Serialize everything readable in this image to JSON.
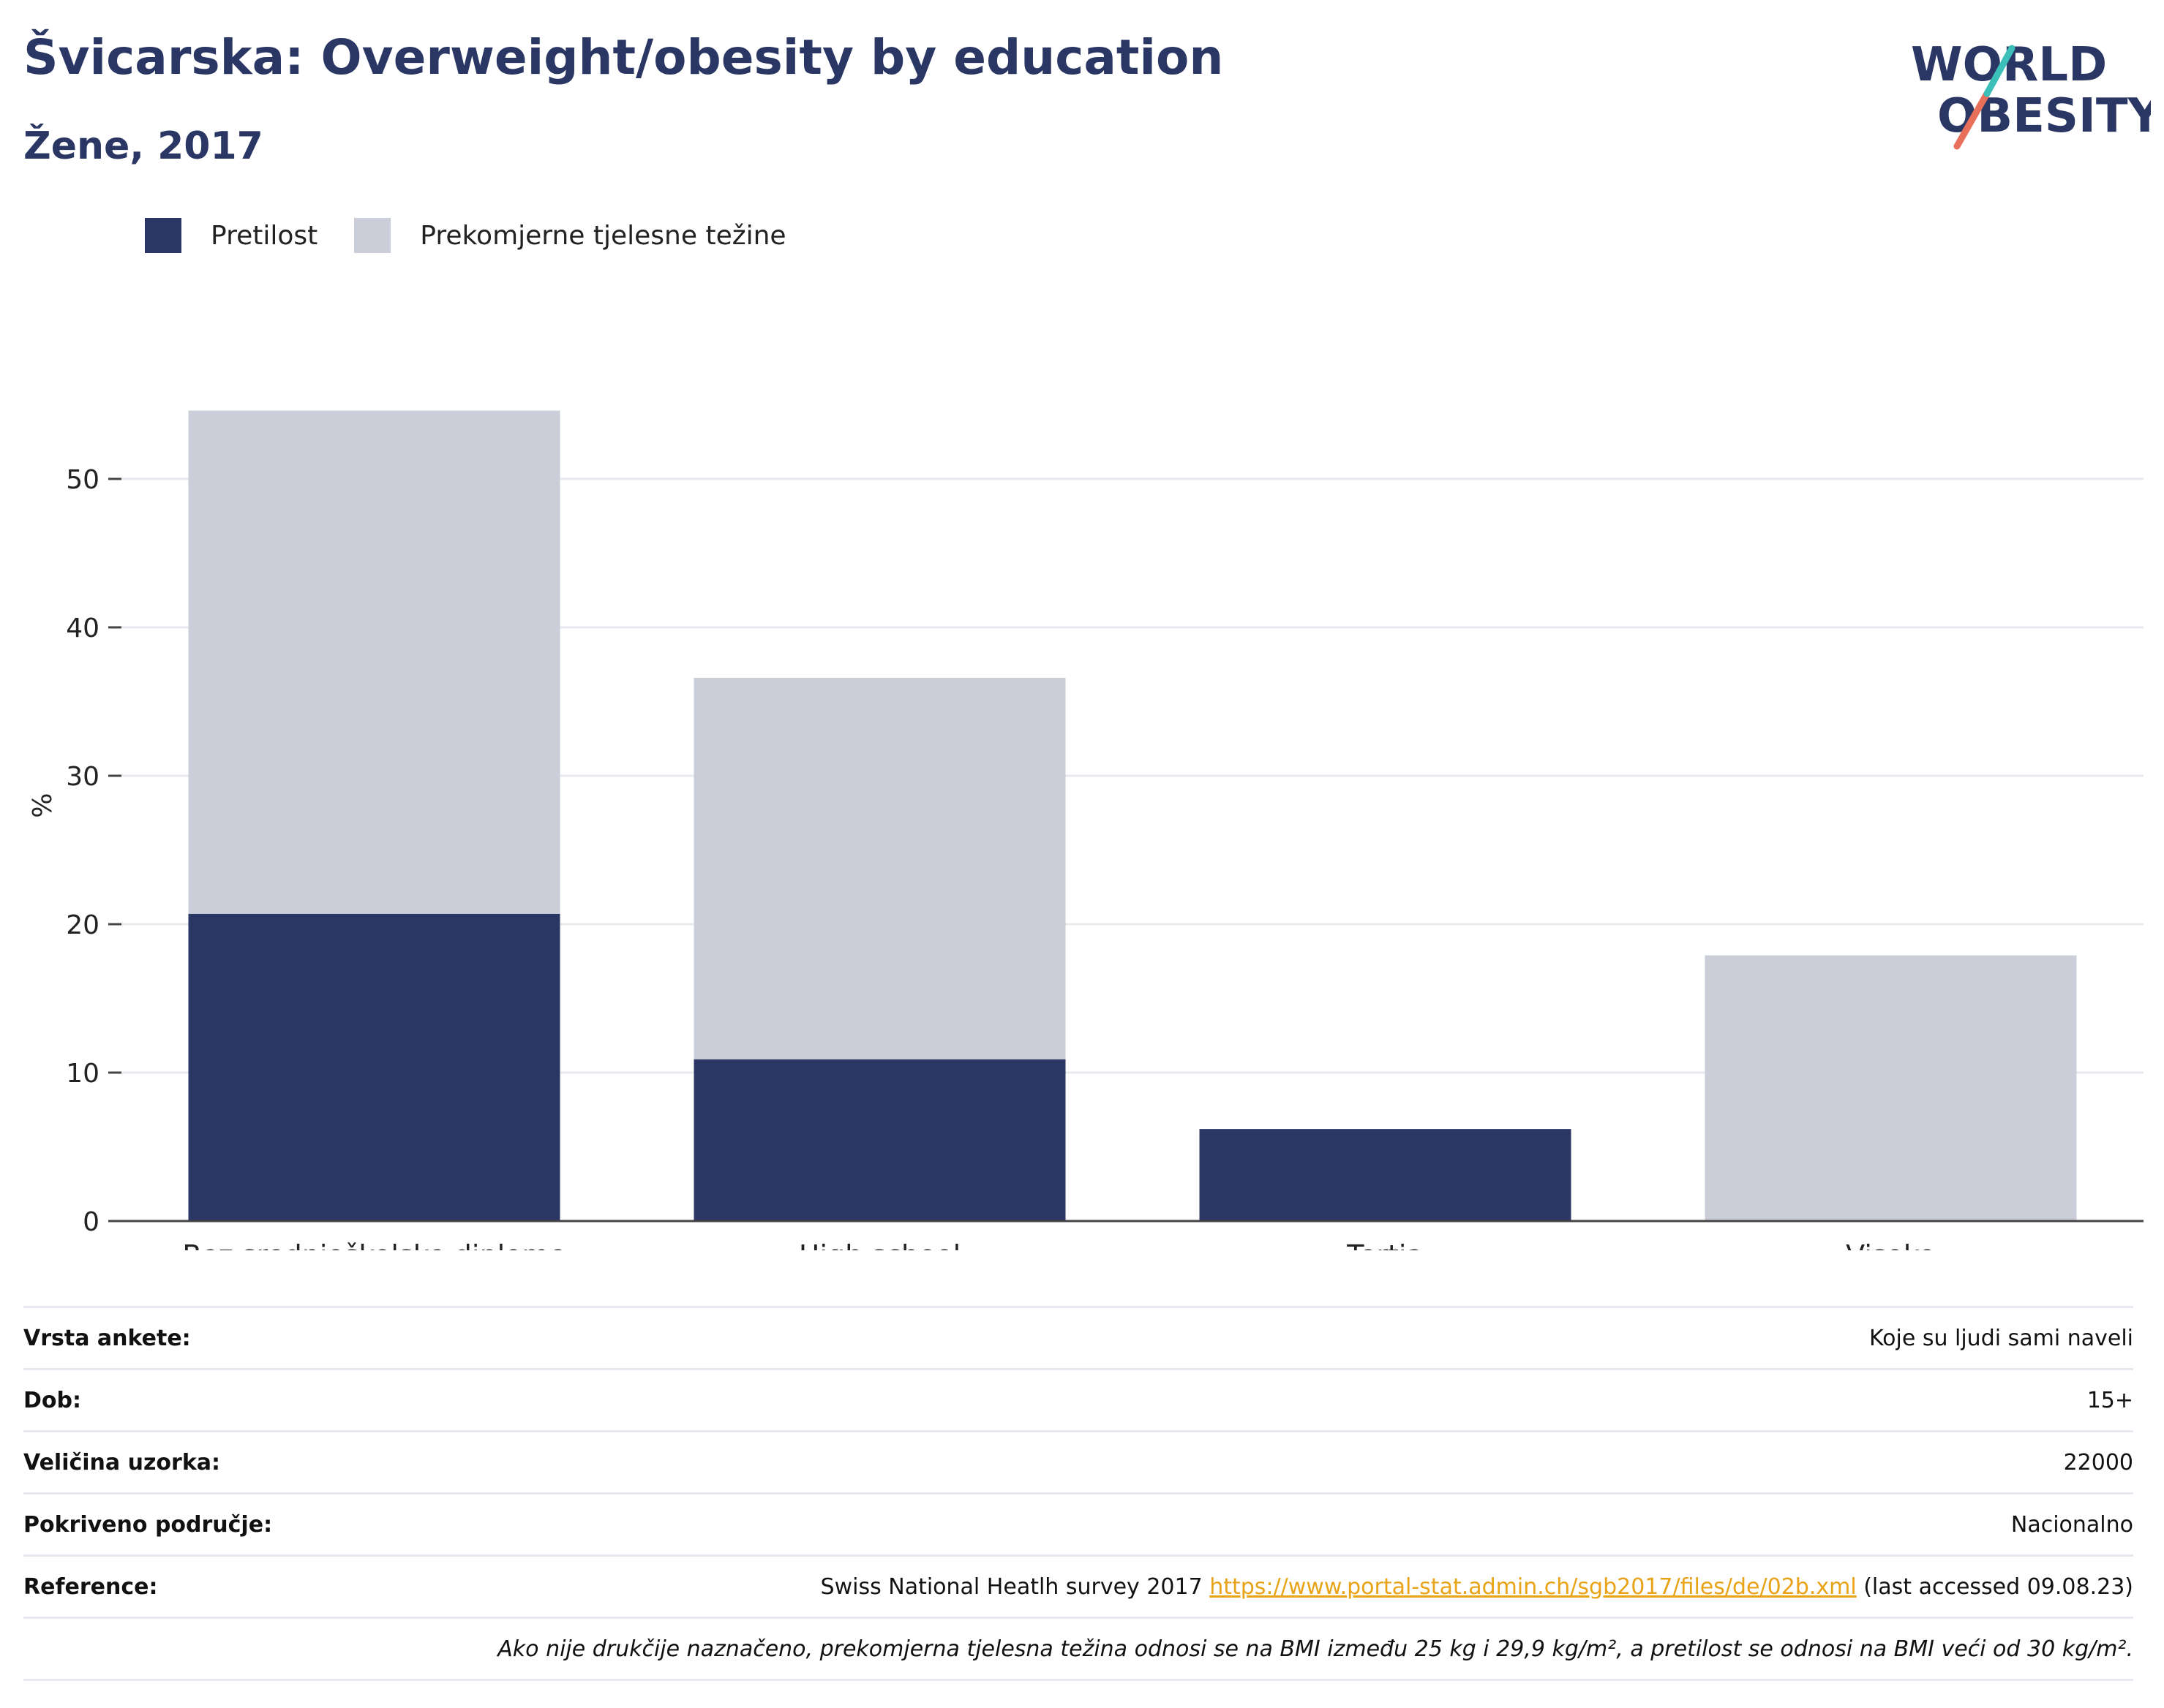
{
  "header": {
    "title": "Švicarska: Overweight/obesity by education",
    "subtitle": "Žene, 2017"
  },
  "logo": {
    "line1": "WORLD",
    "line2": "OBESITY"
  },
  "colors": {
    "obesity": "#2a3663",
    "overweight": "#cbcdd8",
    "title": "#2a3663",
    "link": "#e8a317",
    "grid": "#e8e9ef"
  },
  "chart_data": {
    "type": "bar",
    "stacked": true,
    "ylabel": "%",
    "ylim": [
      0,
      56
    ],
    "yticks": [
      0,
      10,
      20,
      30,
      40,
      50
    ],
    "grid": true,
    "legend_position": "top-left",
    "categories": [
      "Bez srednjoškolske diplome",
      "High school",
      "Tertia",
      "Visoko"
    ],
    "series": [
      {
        "name": "Pretilost",
        "color": "#2a3663",
        "values": [
          20.7,
          10.9,
          6.2,
          null
        ]
      },
      {
        "name": "Prekomjerne tjelesne težine",
        "color": "#cbcdd8",
        "values": [
          33.9,
          25.7,
          null,
          17.9
        ]
      }
    ]
  },
  "info": {
    "rows": [
      {
        "label": "Vrsta ankete:",
        "value": "Koje su ljudi sami naveli"
      },
      {
        "label": "Dob:",
        "value": "15+"
      },
      {
        "label": "Veličina uzorka:",
        "value": "22000"
      },
      {
        "label": "Pokriveno područje:",
        "value": "Nacionalno"
      }
    ],
    "reference": {
      "label": "Reference:",
      "text_before": "Swiss National Heatlh survey 2017 ",
      "link": "https://www.portal-stat.admin.ch/sgb2017/files/de/02b.xml",
      "text_after": " (last accessed 09.08.23)"
    },
    "note": "Ako nije drukčije naznačeno, prekomjerna tjelesna težina odnosi se na BMI između 25 kg i 29,9 kg/m², a pretilost se odnosi na BMI veći od 30 kg/m²."
  }
}
